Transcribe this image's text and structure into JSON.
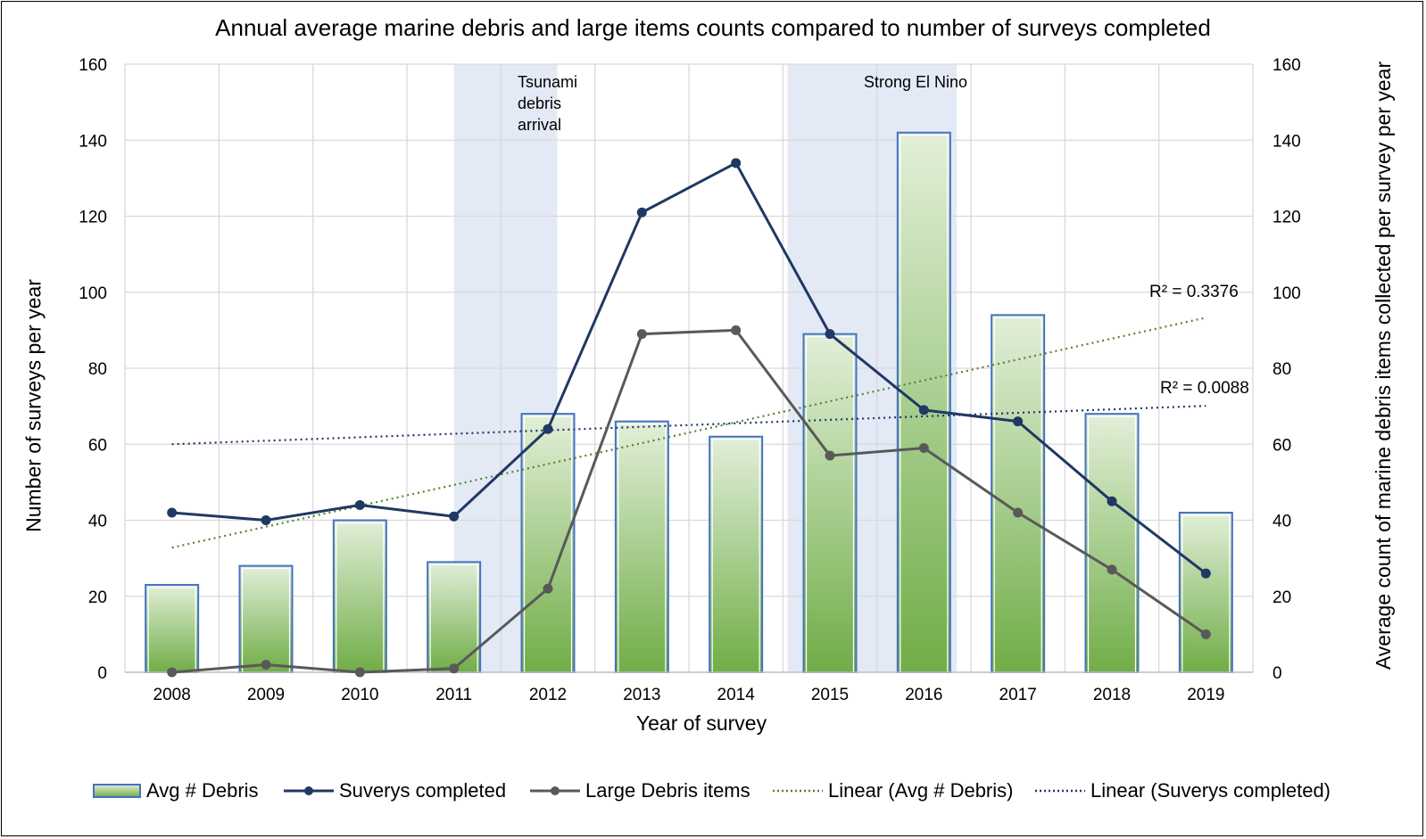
{
  "chart_data": {
    "type": "bar",
    "title": "Annual average marine debris and large items counts compared to number of surveys completed",
    "xlabel": "Year of survey",
    "ylabel_left": "Number of surveys per year",
    "ylabel_right": "Average count of marine debris items collected per survey per year",
    "categories": [
      "2008",
      "2009",
      "2010",
      "2011",
      "2012",
      "2013",
      "2014",
      "2015",
      "2016",
      "2017",
      "2018",
      "2019"
    ],
    "ylim": [
      0,
      160
    ],
    "yticks": [
      0,
      20,
      40,
      60,
      80,
      100,
      120,
      140,
      160
    ],
    "series": [
      {
        "name": "Avg # Debris",
        "kind": "bar",
        "axis": "right",
        "values": [
          23,
          28,
          40,
          29,
          68,
          66,
          62,
          89,
          142,
          94,
          68,
          42
        ]
      },
      {
        "name": "Suverys completed",
        "kind": "line",
        "axis": "left",
        "values": [
          42,
          40,
          44,
          41,
          64,
          121,
          134,
          89,
          69,
          66,
          45,
          26
        ]
      },
      {
        "name": "Large Debris items",
        "kind": "line",
        "axis": "left",
        "values": [
          0,
          2,
          0,
          1,
          22,
          89,
          90,
          57,
          59,
          42,
          27,
          10
        ]
      }
    ],
    "trendlines": [
      {
        "name": "Linear (Avg # Debris)",
        "of": "Avg # Debris",
        "start": 32.8,
        "end": 93.3,
        "r2_label": "R² = 0.3376"
      },
      {
        "name": "Linear (Suverys completed)",
        "of": "Suverys completed",
        "start": 60.0,
        "end": 70.1,
        "r2_label": "R² = 0.0088"
      }
    ],
    "annotations": [
      {
        "text": "Tsunami debris arrival",
        "lines": [
          "Tsunami",
          "debris",
          "arrival"
        ],
        "from": 3.5,
        "to": 4.6
      },
      {
        "text": "Strong El Nino",
        "lines": [
          "Strong El Nino"
        ],
        "from": 7.05,
        "to": 8.85
      }
    ],
    "colors": {
      "survey_line": "#203864",
      "large_line": "#595959",
      "bar_top": "#e2efd9",
      "bar_bottom": "#70ad47",
      "bar_border": "#4472c4",
      "trend_debris": "#548235",
      "trend_surveys": "#203864",
      "highlight": "#dae3f3",
      "grid": "#d9d9d9"
    },
    "legend_position": "bottom",
    "grid": true
  }
}
